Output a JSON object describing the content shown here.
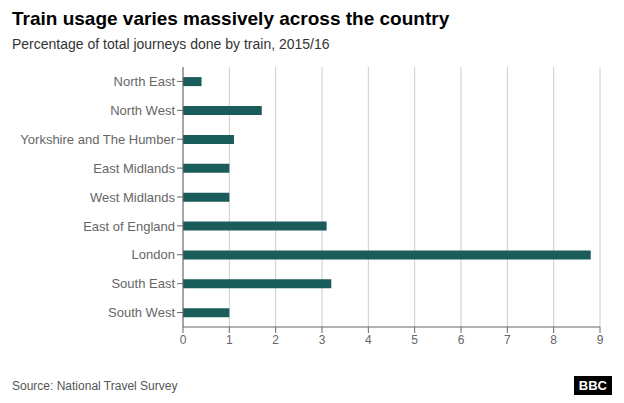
{
  "chart_data": {
    "type": "bar",
    "title": "Train usage varies massively across the country",
    "subtitle": "Percentage of total journeys done by train, 2015/16",
    "annotations": [
      "Source: National Travel Survey",
      "BBC"
    ],
    "categories": [
      "North East",
      "North West",
      "Yorkshire and The Humber",
      "East Midlands",
      "West Midlands",
      "East of England",
      "London",
      "South East",
      "South West"
    ],
    "values": [
      0.4,
      1.7,
      1.1,
      1.0,
      1.0,
      3.1,
      8.8,
      3.2,
      1.0
    ],
    "color": "#1a5c5a",
    "orientation": "horizontal",
    "xlim": [
      0,
      9
    ],
    "xticks": [
      0,
      1,
      2,
      3,
      4,
      5,
      6,
      7,
      8,
      9
    ],
    "grid": true
  }
}
